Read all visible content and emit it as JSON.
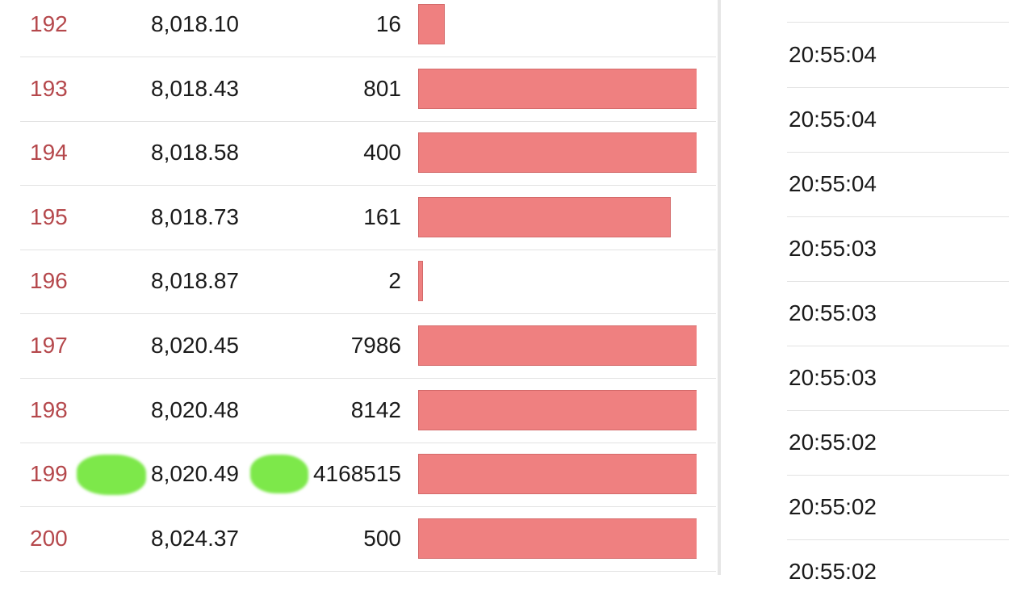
{
  "table": {
    "rows": [
      {
        "index": 192,
        "price": "8,018.10",
        "size": 16
      },
      {
        "index": 193,
        "price": "8,018.43",
        "size": 801
      },
      {
        "index": 194,
        "price": "8,018.58",
        "size": 400
      },
      {
        "index": 195,
        "price": "8,018.73",
        "size": 161
      },
      {
        "index": 196,
        "price": "8,018.87",
        "size": 2
      },
      {
        "index": 197,
        "price": "8,020.45",
        "size": 7986
      },
      {
        "index": 198,
        "price": "8,020.48",
        "size": 8142
      },
      {
        "index": 199,
        "price": "8,020.49",
        "size": 4168515
      },
      {
        "index": 200,
        "price": "8,024.37",
        "size": 500
      }
    ]
  },
  "times": [
    "20:55:04",
    "20:55:04",
    "20:55:04",
    "20:55:03",
    "20:55:03",
    "20:55:03",
    "20:55:02",
    "20:55:02",
    "20:55:02"
  ]
}
